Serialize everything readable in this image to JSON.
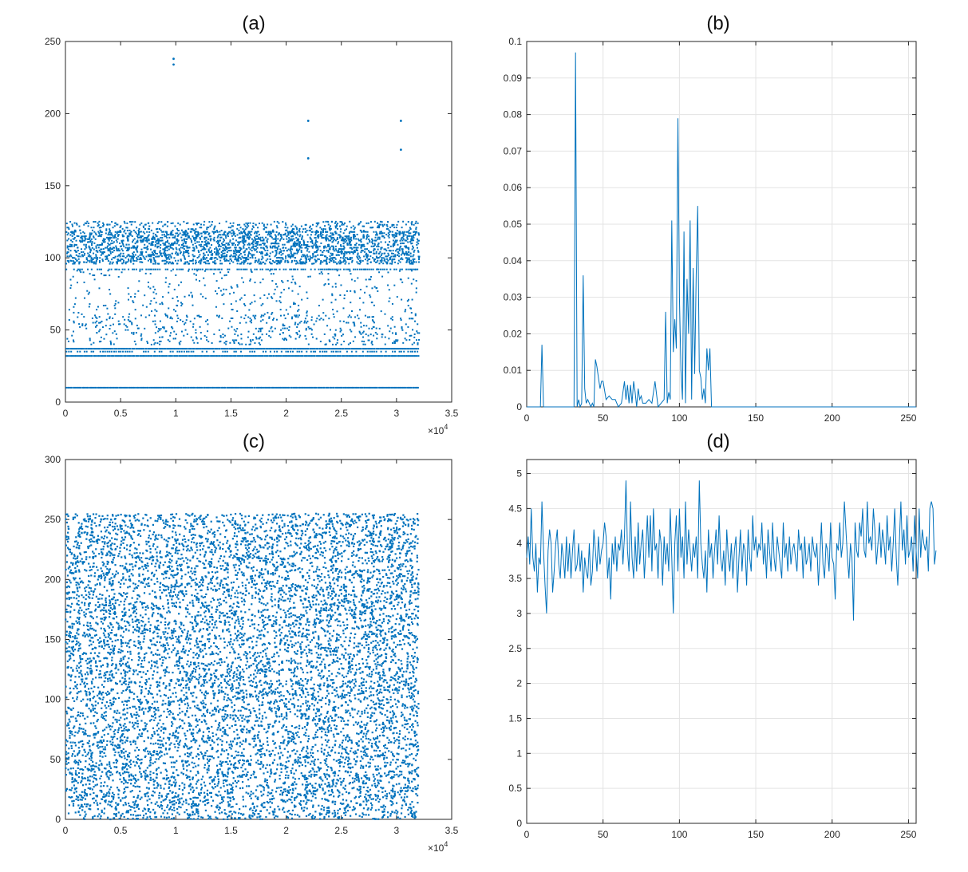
{
  "chart_data": [
    {
      "id": "a",
      "panel_label": "(a)",
      "type": "scatter",
      "xlim": [
        0,
        35000
      ],
      "ylim": [
        0,
        250
      ],
      "xticks": [
        "0",
        "0.5",
        "1",
        "1.5",
        "2",
        "2.5",
        "3",
        "3.5"
      ],
      "yticks": [
        "0",
        "50",
        "100",
        "150",
        "200",
        "250"
      ],
      "x_exponent_label": "×10",
      "x_exponent_power": "4",
      "grid": false,
      "color": "#0072BD",
      "x_extent": [
        0,
        32000
      ],
      "bands": [
        {
          "y": 10,
          "density": 1.0
        },
        {
          "y": 32,
          "density": 1.0
        },
        {
          "y": 35,
          "density": 0.6
        },
        {
          "y": 37,
          "density": 1.0
        },
        {
          "y": [
            40,
            60
          ],
          "density": 0.18
        },
        {
          "y": [
            60,
            92
          ],
          "density": 0.08
        },
        {
          "y": 92,
          "density": 0.7
        },
        {
          "y": [
            96,
            118
          ],
          "density": 0.8
        },
        {
          "y": [
            118,
            125
          ],
          "density": 0.35
        }
      ],
      "outliers": [
        {
          "x": 9800,
          "y": 238
        },
        {
          "x": 9800,
          "y": 234
        },
        {
          "x": 22000,
          "y": 195
        },
        {
          "x": 22000,
          "y": 169
        },
        {
          "x": 30400,
          "y": 195
        },
        {
          "x": 30400,
          "y": 175
        }
      ]
    },
    {
      "id": "b",
      "panel_label": "(b)",
      "type": "line",
      "xlim": [
        0,
        255
      ],
      "ylim": [
        0,
        0.1
      ],
      "xticks": [
        "0",
        "50",
        "100",
        "150",
        "200",
        "250"
      ],
      "yticks": [
        "0",
        "0.01",
        "0.02",
        "0.03",
        "0.04",
        "0.05",
        "0.06",
        "0.07",
        "0.08",
        "0.09",
        "0.1"
      ],
      "grid": true,
      "color": "#0072BD",
      "x": [
        0,
        9,
        10,
        11,
        12,
        31,
        32,
        33,
        34,
        35,
        36,
        37,
        38,
        39,
        40,
        41,
        42,
        43,
        44,
        45,
        46,
        47,
        48,
        49,
        50,
        52,
        54,
        56,
        58,
        60,
        62,
        64,
        65,
        66,
        67,
        68,
        69,
        70,
        71,
        72,
        73,
        74,
        75,
        76,
        78,
        80,
        82,
        84,
        86,
        88,
        90,
        91,
        92,
        93,
        94,
        95,
        96,
        97,
        98,
        99,
        100,
        101,
        102,
        103,
        104,
        105,
        106,
        107,
        108,
        109,
        110,
        111,
        112,
        113,
        114,
        115,
        116,
        117,
        118,
        119,
        120,
        121,
        122,
        123,
        124,
        125,
        126,
        255
      ],
      "y": [
        0,
        0,
        0.017,
        0,
        0,
        0,
        0.097,
        0,
        0.002,
        0,
        0.001,
        0.036,
        0.005,
        0.001,
        0.002,
        0.001,
        0,
        0.001,
        0,
        0.013,
        0.011,
        0.008,
        0.005,
        0.007,
        0.007,
        0.002,
        0.003,
        0.002,
        0.002,
        0,
        0.001,
        0.007,
        0.002,
        0.006,
        0.001,
        0.006,
        0.001,
        0.007,
        0.004,
        0,
        0.005,
        0.002,
        0.003,
        0.001,
        0.001,
        0.002,
        0.001,
        0.007,
        0,
        0.001,
        0.002,
        0.026,
        0.001,
        0.004,
        0.002,
        0.051,
        0.015,
        0.024,
        0.016,
        0.079,
        0.03,
        0.01,
        0.002,
        0.048,
        0.001,
        0.035,
        0.02,
        0.051,
        0.002,
        0.038,
        0.009,
        0.036,
        0.055,
        0.01,
        0.008,
        0.002,
        0.005,
        0.001,
        0.016,
        0.01,
        0.016,
        0,
        0,
        0,
        0,
        0,
        0,
        0
      ]
    },
    {
      "id": "c",
      "panel_label": "(c)",
      "type": "scatter",
      "xlim": [
        0,
        35000
      ],
      "ylim": [
        0,
        300
      ],
      "xticks": [
        "0",
        "0.5",
        "1",
        "1.5",
        "2",
        "2.5",
        "3",
        "3.5"
      ],
      "yticks": [
        "0",
        "50",
        "100",
        "150",
        "200",
        "250",
        "300"
      ],
      "x_exponent_label": "×10",
      "x_exponent_power": "4",
      "grid": false,
      "color": "#0072BD",
      "x_extent": [
        0,
        32000
      ],
      "y_extent": [
        0,
        255
      ],
      "distribution": "uniform"
    },
    {
      "id": "d",
      "panel_label": "(d)",
      "type": "line",
      "xlim": [
        0,
        255
      ],
      "ylim": [
        0,
        5.2
      ],
      "xticks": [
        "0",
        "50",
        "100",
        "150",
        "200",
        "250"
      ],
      "yticks": [
        "0",
        "0.5",
        "1",
        "1.5",
        "2",
        "2.5",
        "3",
        "3.5",
        "4",
        "4.5",
        "5"
      ],
      "grid": true,
      "color": "#0072BD",
      "x_start": 0,
      "x_step": 1,
      "y": [
        3.8,
        4.1,
        3.7,
        4.5,
        3.8,
        3.6,
        4.0,
        3.3,
        3.8,
        3.7,
        4.6,
        3.9,
        3.4,
        3.0,
        3.9,
        4.2,
        4.0,
        3.3,
        3.6,
        4.0,
        4.2,
        3.7,
        3.5,
        4.0,
        3.8,
        3.5,
        4.1,
        3.6,
        4.0,
        3.5,
        3.9,
        4.2,
        3.6,
        3.7,
        4.0,
        3.6,
        3.9,
        3.3,
        3.8,
        3.6,
        3.5,
        4.0,
        3.4,
        3.6,
        4.2,
        3.9,
        3.6,
        4.1,
        3.7,
        3.9,
        4.0,
        4.3,
        4.1,
        3.5,
        3.8,
        3.2,
        4.0,
        3.7,
        4.1,
        3.6,
        4.0,
        3.9,
        4.2,
        3.7,
        4.1,
        4.9,
        3.9,
        3.6,
        4.6,
        3.8,
        3.5,
        4.1,
        3.6,
        4.3,
        3.7,
        4.0,
        4.2,
        3.5,
        3.9,
        4.4,
        3.8,
        4.4,
        3.6,
        4.5,
        3.9,
        4.0,
        3.5,
        4.2,
        4.0,
        3.4,
        4.1,
        3.7,
        4.0,
        3.6,
        4.5,
        3.8,
        3.0,
        4.0,
        4.4,
        3.6,
        4.5,
        3.8,
        4.1,
        3.5,
        4.6,
        3.7,
        4.2,
        3.9,
        3.6,
        4.0,
        3.8,
        4.1,
        3.5,
        4.9,
        4.0,
        3.7,
        3.5,
        3.9,
        3.3,
        4.2,
        3.8,
        4.0,
        3.5,
        3.9,
        4.2,
        3.7,
        4.4,
        3.8,
        3.6,
        3.9,
        3.4,
        4.2,
        3.8,
        3.6,
        4.0,
        3.5,
        3.9,
        4.1,
        3.3,
        3.8,
        4.2,
        3.6,
        4.0,
        3.9,
        3.4,
        4.2,
        3.8,
        3.6,
        4.4,
        3.9,
        4.1,
        3.8,
        4.0,
        3.9,
        4.3,
        3.7,
        4.0,
        3.5,
        4.2,
        3.9,
        3.6,
        4.3,
        3.8,
        3.6,
        4.1,
        3.9,
        3.7,
        3.5,
        4.3,
        3.8,
        4.0,
        3.6,
        4.1,
        3.7,
        3.9,
        4.0,
        3.8,
        3.6,
        4.2,
        3.9,
        4.0,
        3.5,
        4.1,
        3.7,
        3.8,
        4.0,
        3.6,
        4.1,
        3.9,
        3.8,
        4.0,
        3.4,
        3.8,
        4.3,
        3.7,
        3.5,
        4.0,
        3.9,
        3.6,
        4.3,
        3.8,
        3.7,
        3.2,
        4.0,
        3.9,
        4.3,
        3.8,
        4.0,
        4.6,
        4.2,
        3.8,
        3.5,
        4.0,
        3.8,
        2.9,
        4.3,
        3.9,
        3.8,
        4.3,
        4.1,
        4.5,
        3.9,
        3.8,
        4.6,
        4.0,
        4.1,
        3.9,
        4.5,
        4.2,
        3.7,
        4.0,
        4.3,
        3.8,
        4.2,
        4.0,
        3.7,
        4.4,
        3.9,
        4.1,
        3.6,
        4.0,
        4.5,
        3.8,
        3.4,
        4.0,
        4.6,
        3.9,
        4.2,
        3.7,
        4.4,
        3.8,
        3.9,
        4.1,
        3.6,
        4.4,
        3.9,
        3.5,
        4.5,
        3.8,
        4.2,
        4.0,
        3.9,
        4.1,
        3.6,
        4.5,
        4.6,
        4.5,
        3.7,
        3.9
      ]
    }
  ]
}
